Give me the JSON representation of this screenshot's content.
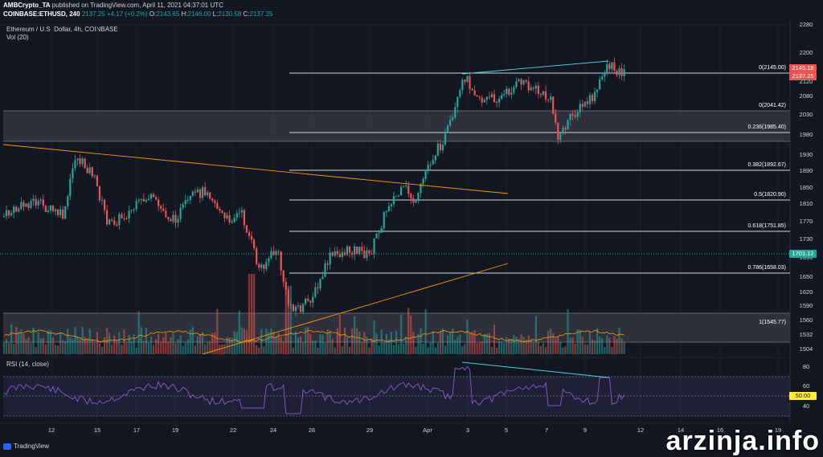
{
  "header": {
    "line1_user": "AMBCrypto_TA",
    "line1_rest": "published on TradingView.com, April 11, 2021 04:37:01 UTC",
    "symbol": "COINBASE:ETHUSD, 240",
    "last": "2137.25",
    "change": "+4.17 (+0.2%)",
    "o_key": "O:",
    "o_val": "2143.65",
    "h_key": "H:",
    "h_val": "2146.00",
    "l_key": "L:",
    "l_val": "2130.58",
    "c_key": "C:",
    "c_val": "2137.25"
  },
  "legend": {
    "series": "Ethereum / U.S. Dollar, 4h, COINBASE",
    "volume": "Vol (20)",
    "rsi": "RSI (14, close)"
  },
  "price_axis": [
    "2280",
    "2200",
    "2160",
    "2120",
    "2080",
    "2030",
    "1980",
    "1930",
    "1890",
    "1850",
    "1810",
    "1770",
    "1730",
    "1690",
    "1650",
    "1620",
    "1590",
    "1560",
    "1532",
    "1504"
  ],
  "price_tags": {
    "fib_top": "2145.18",
    "last": "2137.25",
    "support": "1701.12"
  },
  "rsi_axis": [
    "80",
    "60",
    "40"
  ],
  "rsi_tag": "50.00",
  "fib_levels": [
    {
      "label": "0(2145.00)"
    },
    {
      "label": "0(2041.42)"
    },
    {
      "label": "0.236(1985.40)"
    },
    {
      "label": "0.382(1892.67)"
    },
    {
      "label": "0.5(1820.90)"
    },
    {
      "label": "0.618(1751.85)"
    },
    {
      "label": "0.786(1658.03)"
    },
    {
      "label": "1(1545.77)"
    }
  ],
  "time_axis": [
    "12",
    "15",
    "17",
    "19",
    "22",
    "24",
    "26",
    "29",
    "Apr",
    "3",
    "5",
    "7",
    "9",
    "12",
    "14",
    "16",
    "19"
  ],
  "brand": "TradingView",
  "watermark": "arzinja.info",
  "colors": {
    "up": "#26a69a",
    "down": "#ef5350",
    "bg": "#131722",
    "rsi": "#7e57c2",
    "trend": "#ff9800",
    "highlight_line": "#4dd0e1"
  }
}
